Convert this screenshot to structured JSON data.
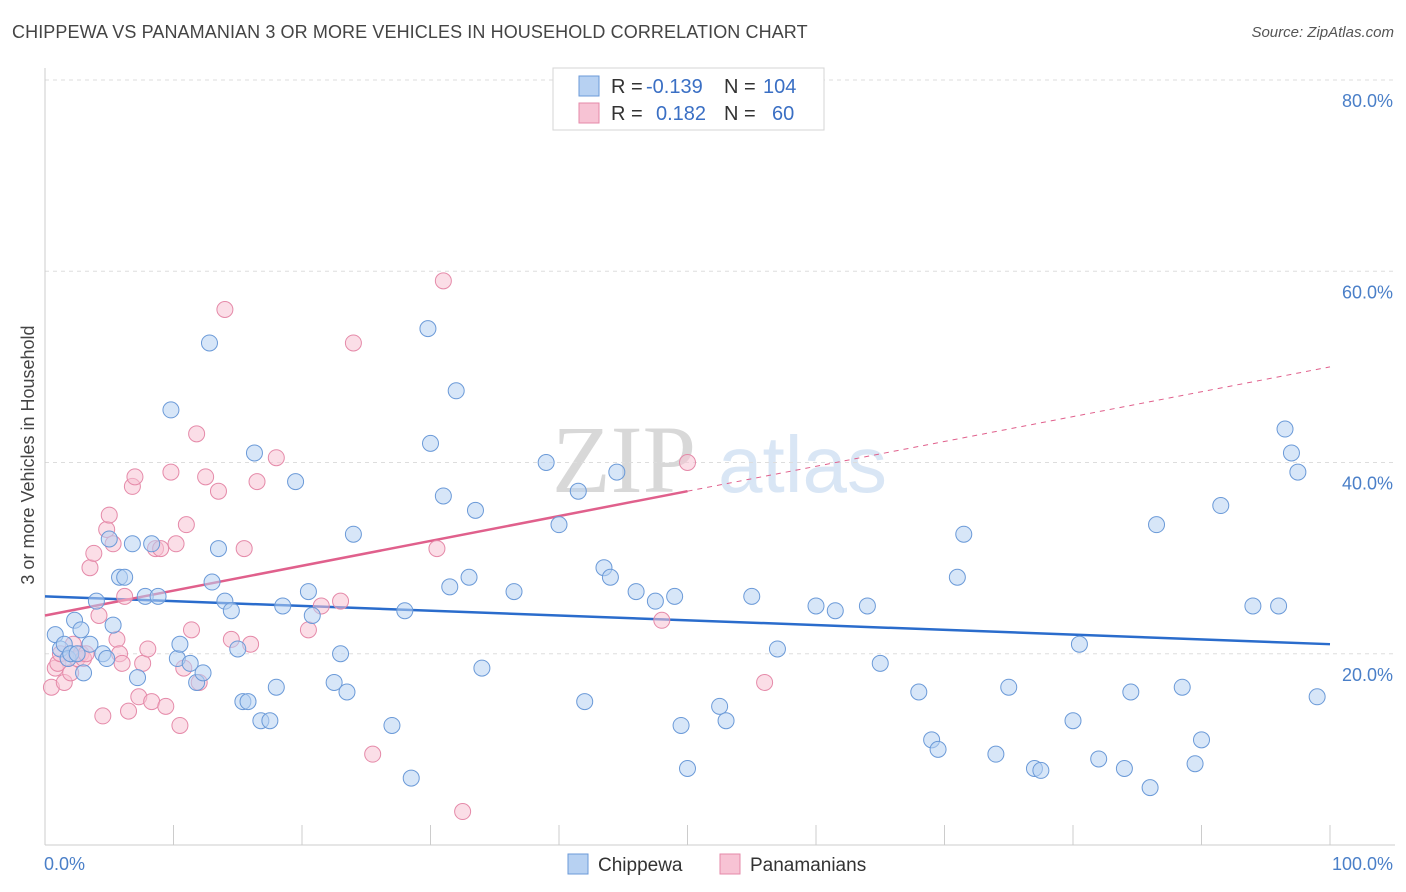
{
  "title": "CHIPPEWA VS PANAMANIAN 3 OR MORE VEHICLES IN HOUSEHOLD CORRELATION CHART",
  "source": "Source: ZipAtlas.com",
  "watermark": {
    "zip": "ZIP",
    "atlas": "atlas"
  },
  "colors": {
    "chippewa_fill": "#b7d1f2",
    "chippewa_stroke": "#6b9ad8",
    "chippewa_line": "#2a6ccc",
    "panamanian_fill": "#f7c3d4",
    "panamanian_stroke": "#e58aa9",
    "panamanian_line": "#e0608c",
    "tick_text": "#4a7fc8",
    "grid": "#dddddd"
  },
  "legend": {
    "rows": [
      {
        "r_label": "R =",
        "r_value": "-0.139",
        "n_label": "N =",
        "n_value": "104"
      },
      {
        "r_label": "R =",
        "r_value": "0.182",
        "n_label": "N =",
        "n_value": "60"
      }
    ]
  },
  "bottom_legend": [
    "Chippewa",
    "Panamanians"
  ],
  "chart_data": {
    "type": "scatter",
    "title": "CHIPPEWA VS PANAMANIAN 3 OR MORE VEHICLES IN HOUSEHOLD CORRELATION CHART",
    "xlabel": "",
    "ylabel": "3 or more Vehicles in Household",
    "xlim": [
      0,
      100
    ],
    "ylim": [
      0,
      80
    ],
    "x_tick_labels": [
      "0.0%",
      "100.0%"
    ],
    "y_ticks": [
      20,
      40,
      60,
      80
    ],
    "y_tick_labels": [
      "20.0%",
      "40.0%",
      "60.0%",
      "80.0%"
    ],
    "legend_position": "top-center",
    "series": [
      {
        "name": "Chippewa",
        "r": -0.139,
        "n": 104,
        "trend": {
          "x0": 0,
          "y0": 26.0,
          "x1": 100,
          "y1": 21.0
        },
        "points": [
          [
            0.8,
            22.0
          ],
          [
            1.2,
            20.5
          ],
          [
            1.5,
            21.0
          ],
          [
            1.8,
            19.5
          ],
          [
            2.0,
            20.0
          ],
          [
            2.3,
            23.5
          ],
          [
            2.5,
            20.0
          ],
          [
            2.8,
            22.5
          ],
          [
            3.0,
            18.0
          ],
          [
            3.5,
            21.0
          ],
          [
            4.0,
            25.5
          ],
          [
            4.5,
            20.0
          ],
          [
            4.8,
            19.5
          ],
          [
            5.0,
            32.0
          ],
          [
            5.3,
            23.0
          ],
          [
            5.8,
            28.0
          ],
          [
            6.2,
            28.0
          ],
          [
            6.8,
            31.5
          ],
          [
            7.2,
            17.5
          ],
          [
            7.8,
            26.0
          ],
          [
            8.3,
            31.5
          ],
          [
            8.8,
            26.0
          ],
          [
            9.8,
            45.5
          ],
          [
            10.3,
            19.5
          ],
          [
            10.5,
            21.0
          ],
          [
            11.3,
            19.0
          ],
          [
            11.8,
            17.0
          ],
          [
            12.3,
            18.0
          ],
          [
            12.8,
            52.5
          ],
          [
            13.0,
            27.5
          ],
          [
            13.5,
            31.0
          ],
          [
            14.0,
            25.5
          ],
          [
            14.5,
            24.5
          ],
          [
            15.0,
            20.5
          ],
          [
            15.4,
            15.0
          ],
          [
            15.8,
            15.0
          ],
          [
            16.3,
            41.0
          ],
          [
            16.8,
            13.0
          ],
          [
            17.5,
            13.0
          ],
          [
            18.0,
            16.5
          ],
          [
            18.5,
            25.0
          ],
          [
            19.5,
            38.0
          ],
          [
            20.5,
            26.5
          ],
          [
            20.8,
            24.0
          ],
          [
            22.5,
            17.0
          ],
          [
            23.0,
            20.0
          ],
          [
            23.5,
            16.0
          ],
          [
            24.0,
            32.5
          ],
          [
            27.0,
            12.5
          ],
          [
            28.0,
            24.5
          ],
          [
            28.5,
            7.0
          ],
          [
            29.8,
            54.0
          ],
          [
            30.0,
            42.0
          ],
          [
            31.0,
            36.5
          ],
          [
            31.5,
            27.0
          ],
          [
            32.0,
            47.5
          ],
          [
            33.0,
            28.0
          ],
          [
            33.5,
            35.0
          ],
          [
            34.0,
            18.5
          ],
          [
            36.5,
            26.5
          ],
          [
            39.0,
            40.0
          ],
          [
            40.0,
            33.5
          ],
          [
            41.5,
            37.0
          ],
          [
            42.0,
            15.0
          ],
          [
            43.5,
            29.0
          ],
          [
            44.0,
            28.0
          ],
          [
            44.5,
            39.0
          ],
          [
            46.0,
            26.5
          ],
          [
            47.5,
            25.5
          ],
          [
            49.0,
            26.0
          ],
          [
            49.5,
            12.5
          ],
          [
            50.0,
            8.0
          ],
          [
            52.5,
            14.5
          ],
          [
            53.0,
            13.0
          ],
          [
            55.0,
            26.0
          ],
          [
            57.0,
            20.5
          ],
          [
            60.0,
            25.0
          ],
          [
            61.5,
            24.5
          ],
          [
            64.0,
            25.0
          ],
          [
            65.0,
            19.0
          ],
          [
            68.0,
            16.0
          ],
          [
            69.0,
            11.0
          ],
          [
            69.5,
            10.0
          ],
          [
            71.0,
            28.0
          ],
          [
            71.5,
            32.5
          ],
          [
            74.0,
            9.5
          ],
          [
            75.0,
            16.5
          ],
          [
            77.0,
            8.0
          ],
          [
            77.5,
            7.8
          ],
          [
            80.0,
            13.0
          ],
          [
            80.5,
            21.0
          ],
          [
            82.0,
            9.0
          ],
          [
            84.0,
            8.0
          ],
          [
            84.5,
            16.0
          ],
          [
            86.0,
            6.0
          ],
          [
            86.5,
            33.5
          ],
          [
            88.5,
            16.5
          ],
          [
            89.5,
            8.5
          ],
          [
            90.0,
            11.0
          ],
          [
            91.5,
            35.5
          ],
          [
            94.0,
            25.0
          ],
          [
            96.0,
            25.0
          ],
          [
            96.5,
            43.5
          ],
          [
            97.0,
            41.0
          ],
          [
            97.5,
            39.0
          ],
          [
            99.0,
            15.5
          ]
        ]
      },
      {
        "name": "Panamanians",
        "r": 0.182,
        "n": 60,
        "trend": {
          "x0": 0,
          "y0": 24.0,
          "x1": 50,
          "y1": 37.0
        },
        "trend_dashed": {
          "x0": 50,
          "y0": 37.0,
          "x1": 100,
          "y1": 50.0
        },
        "points": [
          [
            0.5,
            16.5
          ],
          [
            0.8,
            18.5
          ],
          [
            1.0,
            19.0
          ],
          [
            1.2,
            20.0
          ],
          [
            1.5,
            17.0
          ],
          [
            1.8,
            19.5
          ],
          [
            2.0,
            18.0
          ],
          [
            2.2,
            21.0
          ],
          [
            2.5,
            19.5
          ],
          [
            2.8,
            20.0
          ],
          [
            3.0,
            19.5
          ],
          [
            3.2,
            20.0
          ],
          [
            3.5,
            29.0
          ],
          [
            3.8,
            30.5
          ],
          [
            4.2,
            24.0
          ],
          [
            4.5,
            13.5
          ],
          [
            4.8,
            33.0
          ],
          [
            5.0,
            34.5
          ],
          [
            5.3,
            31.5
          ],
          [
            5.6,
            21.5
          ],
          [
            5.8,
            20.0
          ],
          [
            6.0,
            19.0
          ],
          [
            6.2,
            26.0
          ],
          [
            6.5,
            14.0
          ],
          [
            6.8,
            37.5
          ],
          [
            7.0,
            38.5
          ],
          [
            7.3,
            15.5
          ],
          [
            7.6,
            19.0
          ],
          [
            8.0,
            20.5
          ],
          [
            8.3,
            15.0
          ],
          [
            8.6,
            31.0
          ],
          [
            9.0,
            31.0
          ],
          [
            9.4,
            14.5
          ],
          [
            9.8,
            39.0
          ],
          [
            10.2,
            31.5
          ],
          [
            10.5,
            12.5
          ],
          [
            10.8,
            18.5
          ],
          [
            11.0,
            33.5
          ],
          [
            11.4,
            22.5
          ],
          [
            11.8,
            43.0
          ],
          [
            12.0,
            17.0
          ],
          [
            12.5,
            38.5
          ],
          [
            13.5,
            37.0
          ],
          [
            14.0,
            56.0
          ],
          [
            14.5,
            21.5
          ],
          [
            15.5,
            31.0
          ],
          [
            16.0,
            21.0
          ],
          [
            16.5,
            38.0
          ],
          [
            18.0,
            40.5
          ],
          [
            20.5,
            22.5
          ],
          [
            21.5,
            25.0
          ],
          [
            23.0,
            25.5
          ],
          [
            24.0,
            52.5
          ],
          [
            25.5,
            9.5
          ],
          [
            30.5,
            31.0
          ],
          [
            31.0,
            59.0
          ],
          [
            32.5,
            3.5
          ],
          [
            48.0,
            23.5
          ],
          [
            50.0,
            40.0
          ],
          [
            56.0,
            17.0
          ]
        ]
      }
    ]
  }
}
